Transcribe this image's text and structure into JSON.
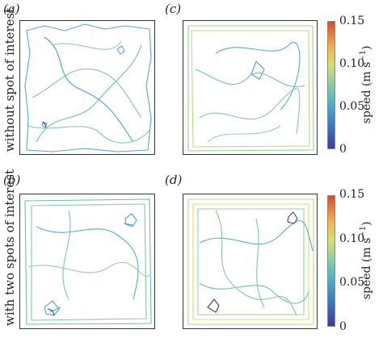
{
  "figure": {
    "panels": [
      {
        "id": "a",
        "label": "(a)"
      },
      {
        "id": "b",
        "label": "(b)"
      },
      {
        "id": "c",
        "label": "(c)"
      },
      {
        "id": "d",
        "label": "(d)"
      }
    ],
    "row_labels": [
      "without spot of interest",
      "with two spots of interest"
    ],
    "colorbar": {
      "title": "speed (m s",
      "title_sup": "−1",
      "title_close": ")",
      "ticks": [
        "0.15",
        "0.10",
        "0.05",
        "0"
      ],
      "gradient": [
        "#3b3aa6",
        "#3a77c4",
        "#48b0cc",
        "#8fd0a0",
        "#d6e16b",
        "#f2b44a",
        "#e04a2d"
      ]
    }
  }
}
